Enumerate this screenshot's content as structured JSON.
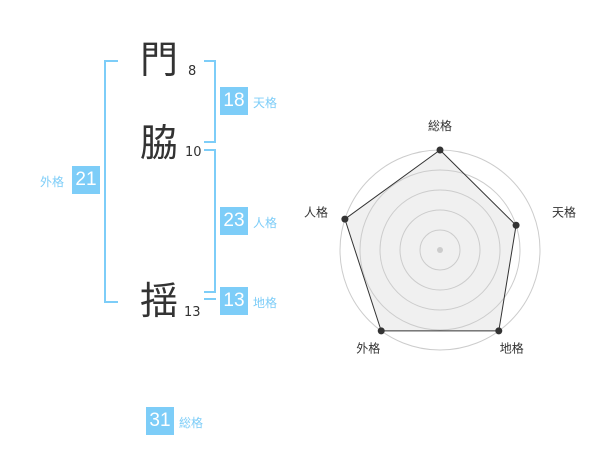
{
  "name": [
    {
      "char": "門",
      "strokes": "8"
    },
    {
      "char": "脇",
      "strokes": "10"
    },
    {
      "char": "揺",
      "strokes": "13"
    }
  ],
  "kaku": {
    "tenkaku": {
      "label": "天格",
      "value": "18"
    },
    "jinkaku": {
      "label": "人格",
      "value": "23"
    },
    "chikaku": {
      "label": "地格",
      "value": "13"
    },
    "gaikaku": {
      "label": "外格",
      "value": "21"
    },
    "soukaku": {
      "label": "総格",
      "value": "31"
    }
  },
  "colors": {
    "accent": "#7dcdf8",
    "radar_fill": "#f0f0f0",
    "radar_line": "#333333"
  },
  "chart_data": {
    "type": "radar",
    "axes": [
      "総格",
      "天格",
      "地格",
      "外格",
      "人格"
    ],
    "values": [
      5,
      4,
      5,
      5,
      5
    ],
    "range": [
      0,
      5
    ],
    "rings": 5
  }
}
